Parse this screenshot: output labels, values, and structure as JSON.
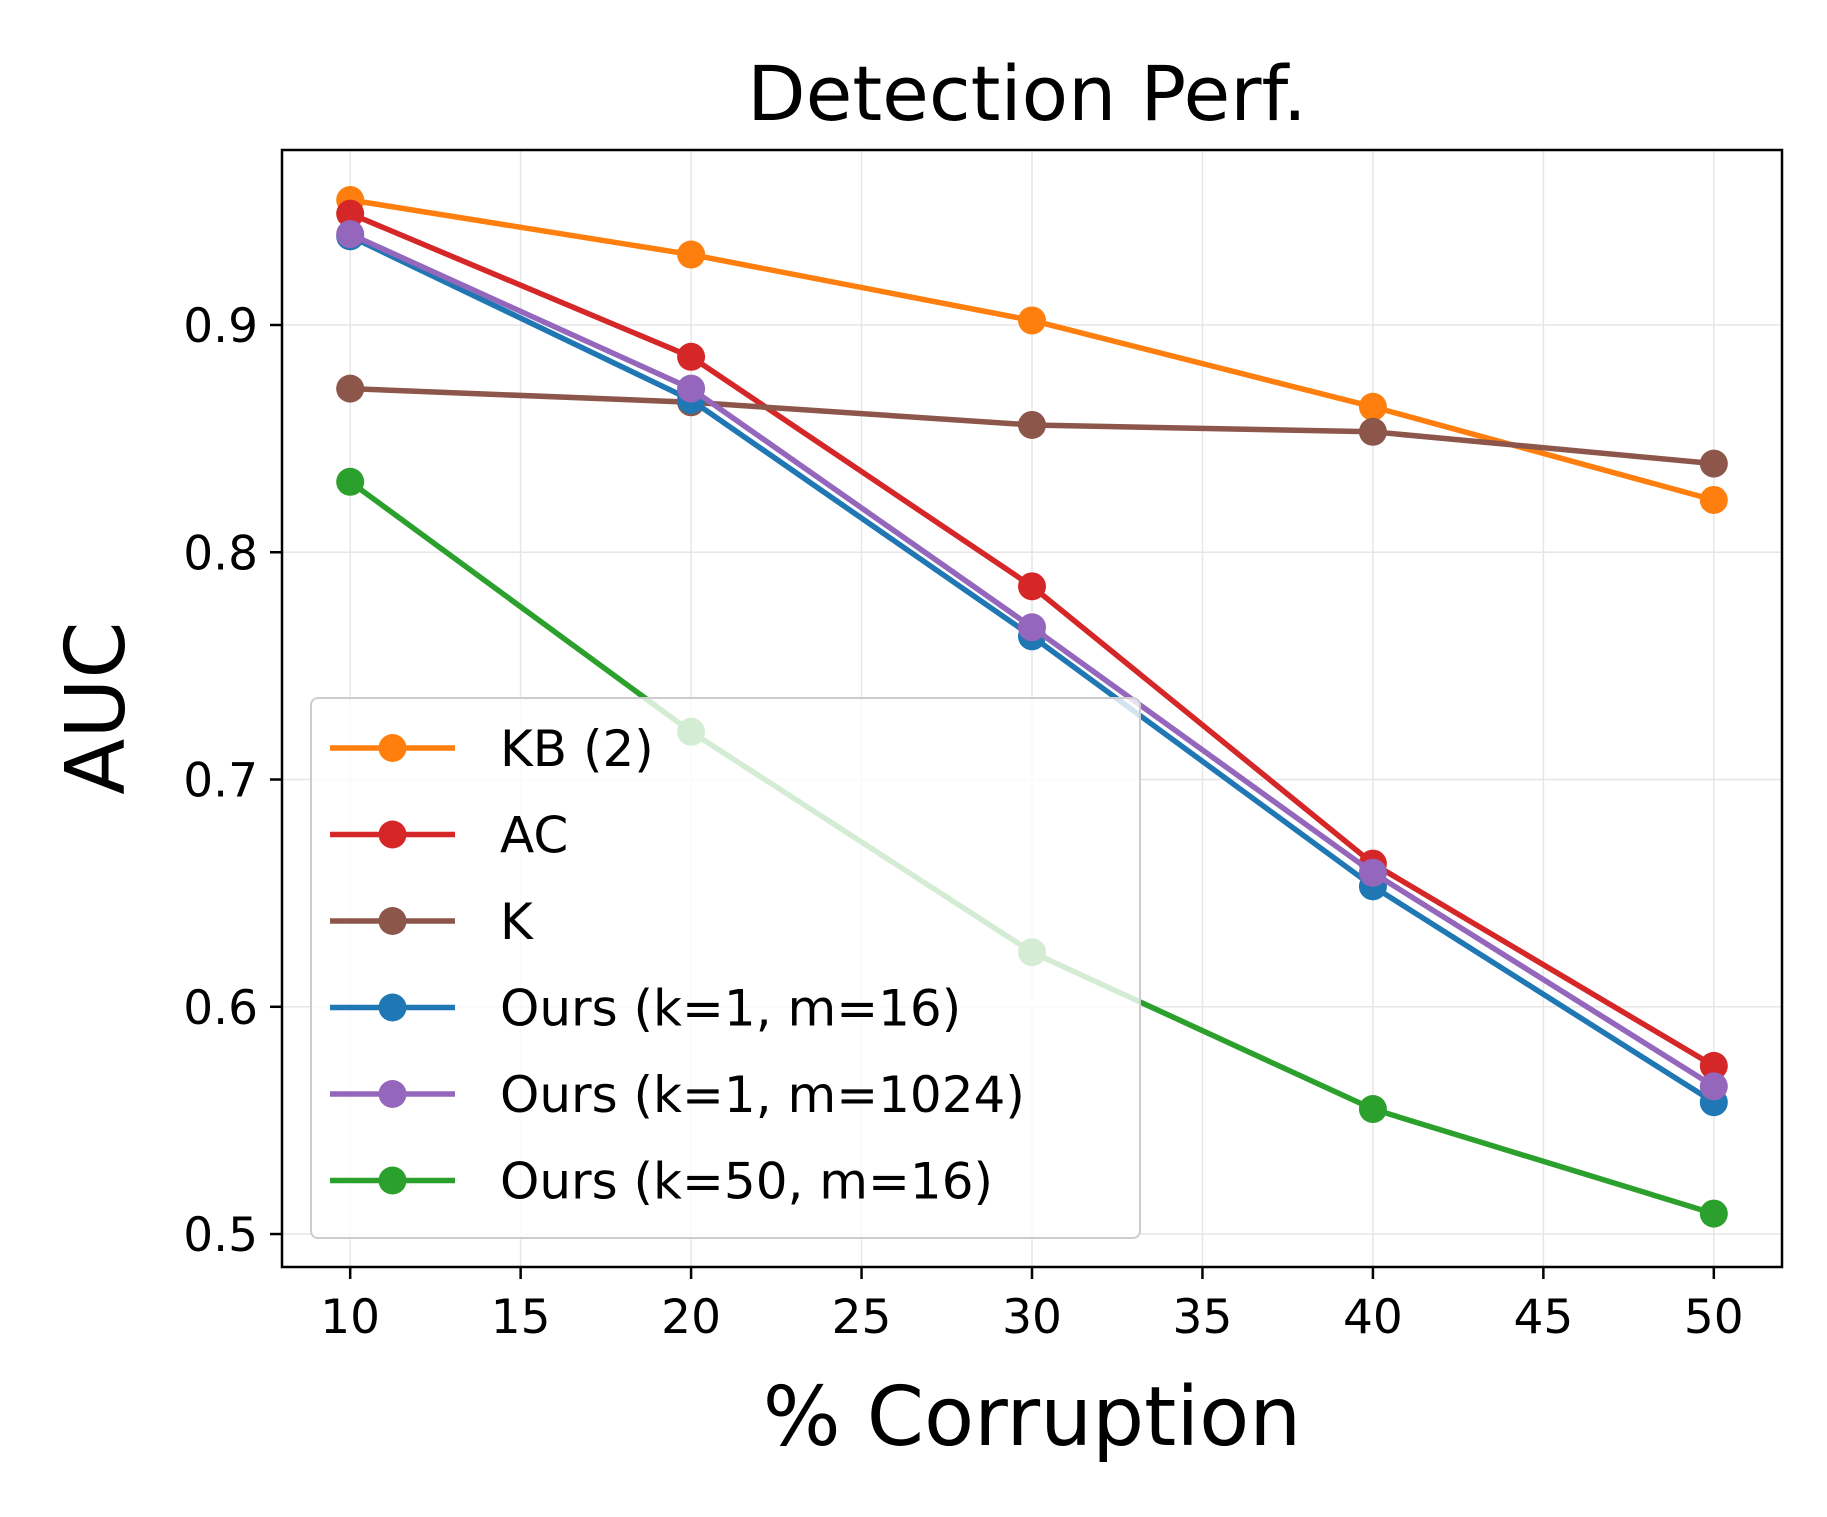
{
  "chart_data": {
    "type": "line",
    "title": "Detection Perf.",
    "xlabel": "% Corruption",
    "ylabel": "AUC",
    "x": [
      10,
      20,
      30,
      40,
      50
    ],
    "xlim": [
      8,
      52
    ],
    "ylim": [
      0.4855,
      0.977
    ],
    "xticks": [
      10,
      15,
      20,
      25,
      30,
      35,
      40,
      45,
      50
    ],
    "xtick_labels": [
      "10",
      "15",
      "20",
      "25",
      "30",
      "35",
      "40",
      "45",
      "50"
    ],
    "yticks": [
      0.5,
      0.6,
      0.7,
      0.8,
      0.9
    ],
    "ytick_labels": [
      "0.5",
      "0.6",
      "0.7",
      "0.8",
      "0.9"
    ],
    "grid": true,
    "legend_position": "lower-left",
    "series": [
      {
        "name": "KB (2)",
        "color": "#ff7f0e",
        "values": [
          0.955,
          0.931,
          0.902,
          0.864,
          0.823
        ]
      },
      {
        "name": "AC",
        "color": "#d62728",
        "values": [
          0.949,
          0.886,
          0.785,
          0.663,
          0.574
        ]
      },
      {
        "name": "K",
        "color": "#8c564b",
        "values": [
          0.872,
          0.866,
          0.856,
          0.853,
          0.839
        ]
      },
      {
        "name": "Ours (k=1, m=16)",
        "color": "#1f77b4",
        "values": [
          0.939,
          0.867,
          0.763,
          0.653,
          0.558
        ]
      },
      {
        "name": "Ours (k=1, m=1024)",
        "color": "#9467bd",
        "values": [
          0.94,
          0.872,
          0.767,
          0.659,
          0.565
        ]
      },
      {
        "name": "Ours (k=50, m=16)",
        "color": "#2ca02c",
        "values": [
          0.831,
          0.721,
          0.624,
          0.555,
          0.509
        ]
      }
    ]
  }
}
